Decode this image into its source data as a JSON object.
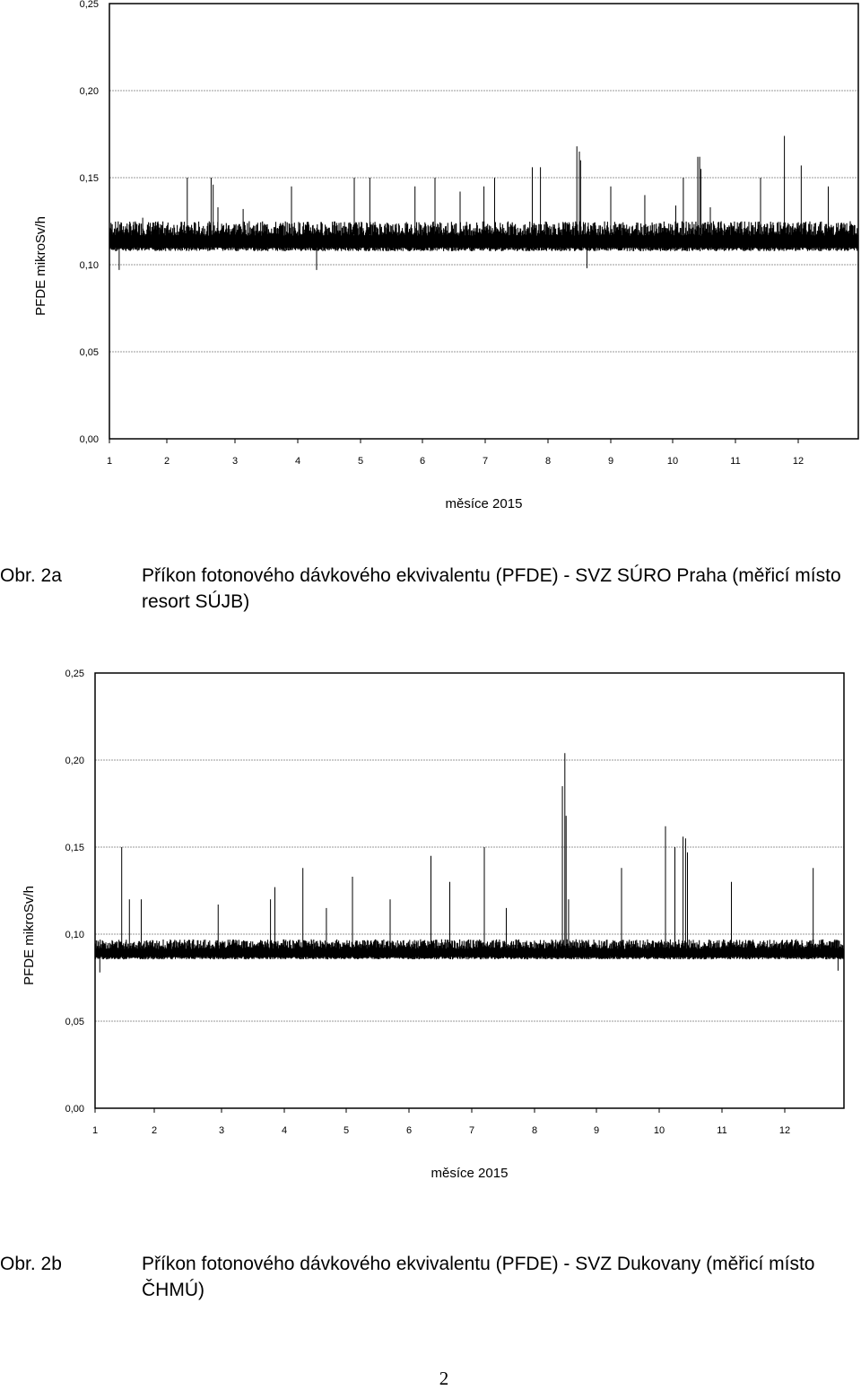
{
  "chart_data": [
    {
      "type": "line",
      "ylabel": "PFDE mikroSv/h",
      "xlabel": "měsíce 2015",
      "categories": [
        "1",
        "2",
        "3",
        "4",
        "5",
        "6",
        "7",
        "8",
        "9",
        "10",
        "11",
        "12"
      ],
      "y_ticks": [
        "0,25",
        "0,20",
        "0,15",
        "0,10",
        "0,05",
        "0,00"
      ],
      "ylim": [
        0,
        0.25
      ],
      "grid": true,
      "series": [
        {
          "baseline_low": 0.11,
          "baseline_high": 0.125,
          "spikes": [
            {
              "x": 1.17,
              "y": 0.097
            },
            {
              "x": 1.58,
              "y": 0.127
            },
            {
              "x": 2.3,
              "y": 0.15
            },
            {
              "x": 2.65,
              "y": 0.15
            },
            {
              "x": 2.68,
              "y": 0.146
            },
            {
              "x": 2.75,
              "y": 0.133
            },
            {
              "x": 3.13,
              "y": 0.132
            },
            {
              "x": 3.9,
              "y": 0.145
            },
            {
              "x": 4.3,
              "y": 0.097
            },
            {
              "x": 4.9,
              "y": 0.15
            },
            {
              "x": 5.15,
              "y": 0.15
            },
            {
              "x": 5.88,
              "y": 0.145
            },
            {
              "x": 6.2,
              "y": 0.15
            },
            {
              "x": 6.6,
              "y": 0.142
            },
            {
              "x": 6.98,
              "y": 0.145
            },
            {
              "x": 7.15,
              "y": 0.15
            },
            {
              "x": 7.75,
              "y": 0.156
            },
            {
              "x": 7.88,
              "y": 0.156
            },
            {
              "x": 8.46,
              "y": 0.168
            },
            {
              "x": 8.5,
              "y": 0.165
            },
            {
              "x": 8.52,
              "y": 0.16
            },
            {
              "x": 8.62,
              "y": 0.098
            },
            {
              "x": 9.0,
              "y": 0.145
            },
            {
              "x": 9.55,
              "y": 0.14
            },
            {
              "x": 10.05,
              "y": 0.134
            },
            {
              "x": 10.17,
              "y": 0.15
            },
            {
              "x": 10.4,
              "y": 0.162
            },
            {
              "x": 10.43,
              "y": 0.162
            },
            {
              "x": 10.45,
              "y": 0.155
            },
            {
              "x": 10.6,
              "y": 0.133
            },
            {
              "x": 11.4,
              "y": 0.15
            },
            {
              "x": 11.78,
              "y": 0.174
            },
            {
              "x": 12.05,
              "y": 0.157
            },
            {
              "x": 12.5,
              "y": 0.145
            }
          ]
        }
      ]
    },
    {
      "type": "line",
      "ylabel": "PFDE mikroSv/h",
      "xlabel": "měsíce 2015",
      "categories": [
        "1",
        "2",
        "3",
        "4",
        "5",
        "6",
        "7",
        "8",
        "9",
        "10",
        "11",
        "12"
      ],
      "y_ticks": [
        "0,25",
        "0,20",
        "0,15",
        "0,10",
        "0,05",
        "0,00"
      ],
      "ylim": [
        0,
        0.25
      ],
      "grid": true,
      "series": [
        {
          "baseline_low": 0.087,
          "baseline_high": 0.097,
          "spikes": [
            {
              "x": 1.08,
              "y": 0.078
            },
            {
              "x": 1.45,
              "y": 0.15
            },
            {
              "x": 1.58,
              "y": 0.12
            },
            {
              "x": 1.78,
              "y": 0.12
            },
            {
              "x": 2.95,
              "y": 0.117
            },
            {
              "x": 3.78,
              "y": 0.12
            },
            {
              "x": 3.85,
              "y": 0.127
            },
            {
              "x": 4.3,
              "y": 0.138
            },
            {
              "x": 4.68,
              "y": 0.115
            },
            {
              "x": 5.1,
              "y": 0.133
            },
            {
              "x": 5.7,
              "y": 0.12
            },
            {
              "x": 6.35,
              "y": 0.145
            },
            {
              "x": 6.65,
              "y": 0.13
            },
            {
              "x": 7.2,
              "y": 0.15
            },
            {
              "x": 7.55,
              "y": 0.115
            },
            {
              "x": 8.45,
              "y": 0.185
            },
            {
              "x": 8.49,
              "y": 0.204
            },
            {
              "x": 8.51,
              "y": 0.168
            },
            {
              "x": 8.55,
              "y": 0.12
            },
            {
              "x": 9.4,
              "y": 0.138
            },
            {
              "x": 10.1,
              "y": 0.162
            },
            {
              "x": 10.25,
              "y": 0.15
            },
            {
              "x": 10.38,
              "y": 0.156
            },
            {
              "x": 10.42,
              "y": 0.155
            },
            {
              "x": 10.45,
              "y": 0.147
            },
            {
              "x": 11.15,
              "y": 0.13
            },
            {
              "x": 12.48,
              "y": 0.138
            },
            {
              "x": 12.9,
              "y": 0.079
            }
          ]
        }
      ]
    }
  ],
  "captions": [
    {
      "number": "Obr. 2a",
      "text": "Příkon fotonového dávkového ekvivalentu (PFDE) - SVZ SÚRO Praha (měřicí místo resort SÚJB)"
    },
    {
      "number": "Obr. 2b",
      "text": "Příkon fotonového dávkového ekvivalentu (PFDE) - SVZ Dukovany (měřicí místo ČHMÚ)"
    }
  ],
  "page_number": "2"
}
